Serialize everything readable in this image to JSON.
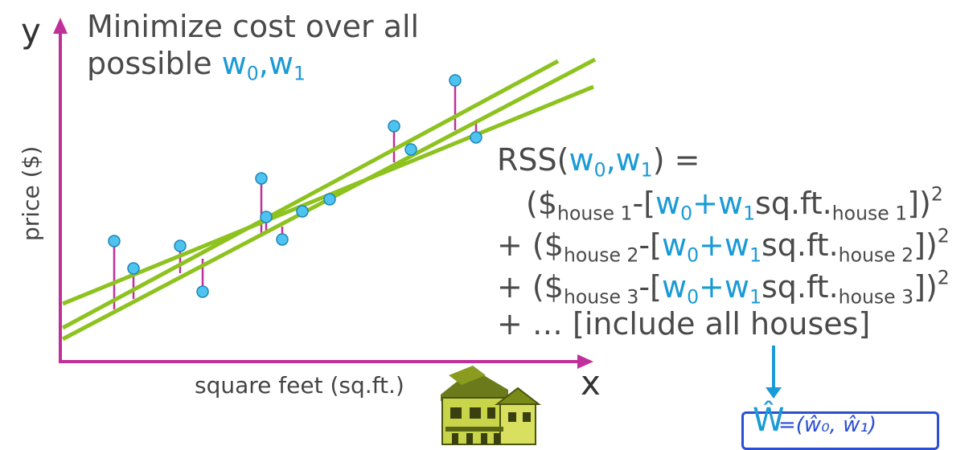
{
  "axes": {
    "y_letter": "y",
    "x_letter": "x",
    "y_label": "price ($)",
    "x_label": "square feet (sq.ft.)"
  },
  "title": {
    "line1": "Minimize cost over all",
    "line2_prefix": "possible ",
    "w0": "w",
    "w0_sub": "0",
    "comma": ",",
    "w1": "w",
    "w1_sub": "1"
  },
  "rss": {
    "head_prefix": "RSS(",
    "w0": "w",
    "w0_sub": "0",
    "comma": ",",
    "w1": "w",
    "w1_sub": "1",
    "head_suffix": ") =",
    "terms": [
      {
        "lead": "(",
        "dollar": "$",
        "house": "house 1",
        "mid": "-[",
        "w0": "w",
        "w0_sub": "0",
        "plus": "+",
        "w1": "w",
        "w1_sub": "1",
        "sqft": "sq.ft.",
        "sqft_house": "house 1",
        "close": "])",
        "power": "2"
      },
      {
        "lead": "+ (",
        "dollar": "$",
        "house": "house 2",
        "mid": "-[",
        "w0": "w",
        "w0_sub": "0",
        "plus": "+",
        "w1": "w",
        "w1_sub": "1",
        "sqft": "sq.ft.",
        "sqft_house": "house 2",
        "close": "])",
        "power": "2"
      },
      {
        "lead": "+ (",
        "dollar": "$",
        "house": "house 3",
        "mid": "-[",
        "w0": "w",
        "w0_sub": "0",
        "plus": "+",
        "w1": "w",
        "w1_sub": "1",
        "sqft": "sq.ft.",
        "sqft_house": "house 3",
        "close": "])",
        "power": "2"
      }
    ],
    "last_line": "+ … [include all houses]"
  },
  "result": {
    "w_hat": "Ŵ",
    "rest": "=(ŵ₀, ŵ₁)"
  },
  "colors": {
    "axis": "#c0309a",
    "fit_line": "#8dc21f",
    "point": "#4fc3ef",
    "point_stroke": "#1e86b8",
    "residual": "#c0309a",
    "highlight": "#1a9ad6",
    "handwriting": "#2a4ed6"
  },
  "icons": {
    "house": "house-icon",
    "arrow": "down-arrow-icon"
  }
}
